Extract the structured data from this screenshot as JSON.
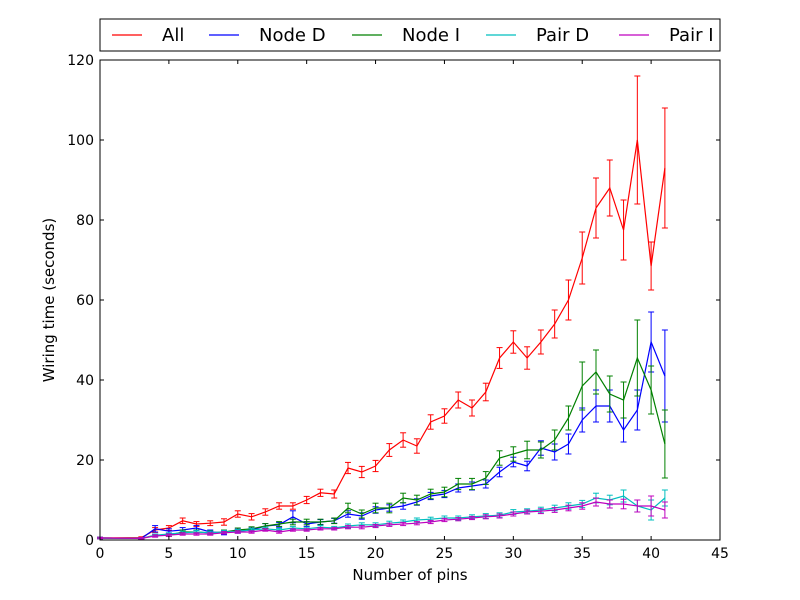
{
  "chart_data": {
    "type": "line",
    "xlabel": "Number of pins",
    "ylabel": "Wiring time (seconds)",
    "xlim": [
      0,
      45
    ],
    "ylim": [
      0,
      120
    ],
    "xticks": [
      0,
      5,
      10,
      15,
      20,
      25,
      30,
      35,
      40,
      45
    ],
    "yticks": [
      0,
      20,
      40,
      60,
      80,
      100,
      120
    ],
    "legend_position": "top (above plot)",
    "error_bars": true,
    "series": [
      {
        "name": "All",
        "color": "#ff0000",
        "x": [
          0,
          3,
          4,
          5,
          6,
          7,
          8,
          9,
          10,
          11,
          12,
          13,
          14,
          15,
          16,
          17,
          18,
          19,
          20,
          21,
          22,
          23,
          24,
          25,
          26,
          27,
          28,
          29,
          30,
          31,
          32,
          33,
          34,
          35,
          36,
          37,
          38,
          39,
          40,
          41
        ],
        "y": [
          0.5,
          0.6,
          2.5,
          3.0,
          4.8,
          4.0,
          4.2,
          4.5,
          6.5,
          5.8,
          7.0,
          8.5,
          8.5,
          10.0,
          11.8,
          11.5,
          18.0,
          17.0,
          18.5,
          22.5,
          25.0,
          23.5,
          29.5,
          31.0,
          35.0,
          33.0,
          37.0,
          45.5,
          49.5,
          45.5,
          49.5,
          54.0,
          60.0,
          70.5,
          83.0,
          88.0,
          77.5,
          100.0,
          68.5,
          93.0
        ],
        "err": [
          0.2,
          0.2,
          0.6,
          0.6,
          0.7,
          0.6,
          0.6,
          0.8,
          0.8,
          0.8,
          0.8,
          0.8,
          0.8,
          0.9,
          0.9,
          1.0,
          1.4,
          1.4,
          1.4,
          1.6,
          1.8,
          1.8,
          1.8,
          1.8,
          2.0,
          2.0,
          2.2,
          2.6,
          2.8,
          2.8,
          3.0,
          3.5,
          5.0,
          6.5,
          7.5,
          7.0,
          7.5,
          16.0,
          6.0,
          15.0
        ]
      },
      {
        "name": "Node D",
        "color": "#0000ff",
        "x": [
          0,
          3,
          4,
          5,
          6,
          7,
          8,
          9,
          10,
          11,
          12,
          13,
          14,
          15,
          16,
          17,
          18,
          19,
          20,
          21,
          22,
          23,
          24,
          25,
          26,
          27,
          28,
          29,
          30,
          31,
          32,
          33,
          34,
          35,
          36,
          37,
          38,
          39,
          40,
          41
        ],
        "y": [
          0.5,
          0.4,
          2.8,
          2.2,
          2.5,
          3.0,
          2.0,
          1.8,
          2.2,
          2.5,
          3.5,
          3.8,
          5.8,
          4.0,
          4.5,
          4.8,
          6.5,
          6.0,
          7.5,
          8.0,
          8.5,
          9.5,
          11.0,
          11.5,
          13.0,
          13.5,
          14.0,
          17.0,
          19.5,
          18.5,
          23.0,
          22.0,
          24.0,
          30.0,
          33.5,
          33.5,
          27.5,
          32.5,
          49.5,
          41.0
        ],
        "err": [
          0.2,
          0.2,
          0.8,
          0.6,
          0.6,
          0.6,
          0.5,
          0.5,
          0.5,
          0.5,
          0.6,
          0.6,
          1.5,
          0.6,
          0.6,
          0.6,
          0.8,
          0.8,
          0.8,
          0.8,
          0.8,
          0.8,
          0.9,
          0.9,
          1.0,
          1.0,
          1.0,
          1.2,
          1.2,
          1.2,
          1.8,
          2.0,
          2.5,
          3.0,
          4.0,
          4.0,
          3.0,
          5.0,
          7.5,
          11.5
        ]
      },
      {
        "name": "Node I",
        "color": "#008000",
        "x": [
          0,
          3,
          4,
          5,
          6,
          7,
          8,
          9,
          10,
          11,
          12,
          13,
          14,
          15,
          16,
          17,
          18,
          19,
          20,
          21,
          22,
          23,
          24,
          25,
          26,
          27,
          28,
          29,
          30,
          31,
          32,
          33,
          34,
          35,
          36,
          37,
          38,
          39,
          40,
          41
        ],
        "y": [
          0.5,
          0.4,
          1.2,
          1.2,
          2.0,
          2.0,
          1.8,
          2.0,
          2.5,
          2.8,
          3.5,
          4.0,
          4.5,
          4.5,
          4.5,
          4.8,
          8.0,
          6.5,
          8.0,
          8.0,
          10.5,
          10.0,
          11.5,
          12.0,
          14.0,
          14.0,
          15.5,
          20.5,
          21.5,
          22.5,
          22.5,
          25.0,
          30.5,
          38.5,
          42.0,
          36.5,
          35.0,
          45.5,
          37.5,
          24.0
        ],
        "err": [
          0.2,
          0.2,
          0.3,
          0.3,
          0.5,
          0.5,
          0.5,
          0.5,
          0.5,
          0.5,
          0.6,
          0.6,
          0.7,
          0.7,
          0.7,
          0.7,
          1.2,
          1.0,
          1.2,
          1.2,
          1.2,
          1.2,
          1.2,
          1.2,
          1.4,
          1.4,
          1.6,
          1.8,
          1.8,
          2.2,
          2.0,
          2.5,
          3.0,
          6.0,
          5.5,
          4.5,
          4.5,
          9.5,
          6.0,
          8.5
        ]
      },
      {
        "name": "Pair D",
        "color": "#00bfbf",
        "x": [
          0,
          3,
          4,
          5,
          6,
          7,
          8,
          9,
          10,
          11,
          12,
          13,
          14,
          15,
          16,
          17,
          18,
          19,
          20,
          21,
          22,
          23,
          24,
          25,
          26,
          27,
          28,
          29,
          30,
          31,
          32,
          33,
          34,
          35,
          36,
          37,
          38,
          39,
          40,
          41
        ],
        "y": [
          0.5,
          0.4,
          1.2,
          1.5,
          1.8,
          2.0,
          1.8,
          2.0,
          2.2,
          2.5,
          2.8,
          2.5,
          3.0,
          2.8,
          3.2,
          3.0,
          3.5,
          3.8,
          3.8,
          4.2,
          4.5,
          5.0,
          5.2,
          5.5,
          5.5,
          5.8,
          6.0,
          6.2,
          7.0,
          7.2,
          7.5,
          8.0,
          8.5,
          9.0,
          10.5,
          10.0,
          11.0,
          8.5,
          7.5,
          10.5
        ],
        "err": [
          0.2,
          0.2,
          0.3,
          0.3,
          0.4,
          0.4,
          0.4,
          0.4,
          0.4,
          0.4,
          0.4,
          0.4,
          0.4,
          0.4,
          0.4,
          0.4,
          0.5,
          0.5,
          0.5,
          0.5,
          0.5,
          0.5,
          0.5,
          0.5,
          0.5,
          0.5,
          0.6,
          0.6,
          0.6,
          0.6,
          0.7,
          0.7,
          0.8,
          0.9,
          1.2,
          1.2,
          1.5,
          1.5,
          2.5,
          2.0
        ]
      },
      {
        "name": "Pair I",
        "color": "#bf00bf",
        "x": [
          0,
          3,
          4,
          5,
          6,
          7,
          8,
          9,
          10,
          11,
          12,
          13,
          14,
          15,
          16,
          17,
          18,
          19,
          20,
          21,
          22,
          23,
          24,
          25,
          26,
          27,
          28,
          29,
          30,
          31,
          32,
          33,
          34,
          35,
          36,
          37,
          38,
          39,
          40,
          41
        ],
        "y": [
          0.5,
          0.4,
          1.0,
          1.2,
          1.5,
          1.5,
          1.5,
          1.8,
          2.0,
          2.0,
          2.5,
          2.0,
          2.5,
          2.5,
          2.8,
          2.8,
          3.2,
          3.2,
          3.5,
          3.8,
          4.0,
          4.2,
          4.5,
          5.0,
          5.2,
          5.5,
          5.8,
          6.0,
          6.5,
          7.0,
          7.2,
          7.5,
          8.0,
          8.5,
          9.5,
          9.0,
          9.0,
          8.5,
          8.5,
          7.5
        ],
        "err": [
          0.2,
          0.2,
          0.3,
          0.3,
          0.3,
          0.3,
          0.3,
          0.3,
          0.3,
          0.3,
          0.3,
          0.3,
          0.3,
          0.3,
          0.3,
          0.3,
          0.4,
          0.4,
          0.4,
          0.4,
          0.4,
          0.4,
          0.4,
          0.4,
          0.4,
          0.4,
          0.5,
          0.5,
          0.5,
          0.5,
          0.6,
          0.6,
          0.7,
          0.8,
          1.0,
          1.0,
          1.2,
          1.5,
          2.5,
          2.0
        ]
      }
    ]
  }
}
